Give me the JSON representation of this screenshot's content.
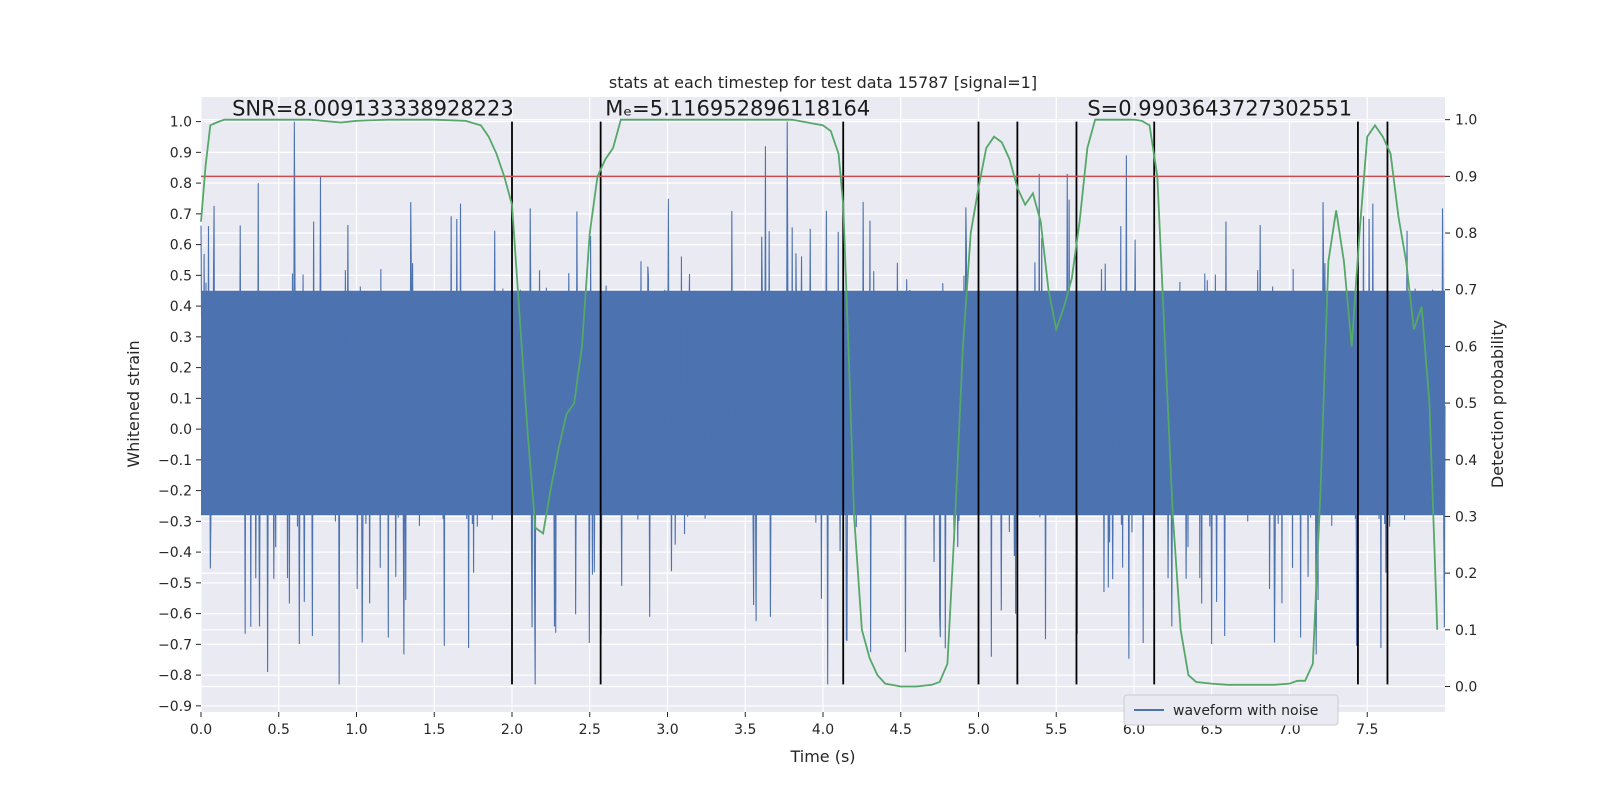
{
  "chart_data": {
    "type": "line",
    "title": "stats at each timestep for test data 15787 [signal=1]",
    "xlabel": "Time (s)",
    "ylabel": "Whitened strain",
    "ylabel_right": "Detection probability",
    "xlim": [
      0.0,
      8.0
    ],
    "ylim": [
      -0.92,
      1.08
    ],
    "ylim_right": [
      -0.045,
      1.04
    ],
    "x_ticks": [
      0.0,
      0.5,
      1.0,
      1.5,
      2.0,
      2.5,
      3.0,
      3.5,
      4.0,
      4.5,
      5.0,
      5.5,
      6.0,
      6.5,
      7.0,
      7.5
    ],
    "x_tick_labels": [
      "0.0",
      "0.5",
      "1.0",
      "1.5",
      "2.0",
      "2.5",
      "3.0",
      "3.5",
      "4.0",
      "4.5",
      "5.0",
      "5.5",
      "6.0",
      "6.5",
      "7.0",
      "7.5"
    ],
    "y_ticks": [
      1.0,
      0.9,
      0.8,
      0.7,
      0.6,
      0.5,
      0.4,
      0.3,
      0.2,
      0.1,
      0.0,
      -0.1,
      -0.2,
      -0.3,
      -0.4,
      -0.5,
      -0.6,
      -0.7,
      -0.8,
      -0.9
    ],
    "y_tick_labels": [
      "1.0",
      "0.9",
      "0.8",
      "0.7",
      "0.6",
      "0.5",
      "0.4",
      "0.3",
      "0.2",
      "0.1",
      "0.0",
      "−0.1",
      "−0.2",
      "−0.3",
      "−0.4",
      "−0.5",
      "−0.6",
      "−0.7",
      "−0.8",
      "−0.9"
    ],
    "y_right_ticks": [
      1.0,
      0.9,
      0.8,
      0.7,
      0.6,
      0.5,
      0.4,
      0.3,
      0.2,
      0.1,
      0.0
    ],
    "y_right_tick_labels": [
      "1.0",
      "0.9",
      "0.8",
      "0.7",
      "0.6",
      "0.5",
      "0.4",
      "0.3",
      "0.2",
      "0.1",
      "0.0"
    ],
    "grid": true,
    "legend": {
      "location": "lower right",
      "entries": [
        "waveform with noise"
      ]
    },
    "annotations": [
      {
        "text": "SNR=8.009133338928223",
        "x": 0.2,
        "y": 1.02
      },
      {
        "text": "Mₑ=5.116952896118164",
        "x": 2.6,
        "y": 1.02
      },
      {
        "text": "S=0.9903643727302551",
        "x": 5.7,
        "y": 1.02
      }
    ],
    "threshold_line": {
      "axis": "right",
      "y": 0.9,
      "color": "#c44e52"
    },
    "vertical_lines": [
      {
        "x": 2.0,
        "ymin": -0.83,
        "ymax": 1.0
      },
      {
        "x": 2.57,
        "ymin": -0.83,
        "ymax": 1.0
      },
      {
        "x": 4.13,
        "ymin": -0.83,
        "ymax": 1.0
      },
      {
        "x": 5.0,
        "ymin": -0.83,
        "ymax": 1.0
      },
      {
        "x": 5.25,
        "ymin": -0.83,
        "ymax": 1.0
      },
      {
        "x": 5.63,
        "ymin": -0.83,
        "ymax": 1.0
      },
      {
        "x": 6.13,
        "ymin": -0.83,
        "ymax": 1.0
      },
      {
        "x": 7.44,
        "ymin": -0.83,
        "ymax": 1.0
      },
      {
        "x": 7.63,
        "ymin": -0.83,
        "ymax": 1.0
      }
    ],
    "series": [
      {
        "name": "waveform with noise",
        "axis": "left",
        "color": "#4c72b0",
        "style": "dense noisy strain trace over the full time range",
        "sample_count": 2000,
        "core_band": [
          -0.28,
          0.45
        ],
        "peaks": [
          {
            "x": 0.6,
            "y": 1.0
          },
          {
            "x": 0.77,
            "y": 0.82
          },
          {
            "x": 0.37,
            "y": 0.8
          },
          {
            "x": 3.63,
            "y": 0.92
          },
          {
            "x": 3.77,
            "y": 1.0
          },
          {
            "x": 5.39,
            "y": 0.83
          },
          {
            "x": 5.57,
            "y": 0.83
          },
          {
            "x": 5.95,
            "y": 0.89
          },
          {
            "x": 0.89,
            "y": -0.83
          },
          {
            "x": 2.15,
            "y": -0.83
          },
          {
            "x": 4.03,
            "y": -0.83
          },
          {
            "x": 0.43,
            "y": -0.79
          }
        ]
      },
      {
        "name": "",
        "axis": "right",
        "color": "#55a868",
        "x": [
          0.0,
          0.03,
          0.06,
          0.1,
          0.15,
          0.2,
          0.3,
          0.5,
          0.7,
          0.9,
          1.0,
          1.2,
          1.5,
          1.7,
          1.8,
          1.85,
          1.9,
          1.95,
          2.0,
          2.05,
          2.1,
          2.15,
          2.2,
          2.25,
          2.3,
          2.35,
          2.4,
          2.45,
          2.5,
          2.55,
          2.6,
          2.65,
          2.7,
          2.75,
          2.8,
          3.0,
          3.3,
          3.6,
          3.8,
          3.9,
          4.0,
          4.05,
          4.1,
          4.13,
          4.17,
          4.2,
          4.25,
          4.3,
          4.35,
          4.4,
          4.5,
          4.6,
          4.7,
          4.75,
          4.8,
          4.85,
          4.9,
          4.95,
          5.0,
          5.05,
          5.1,
          5.15,
          5.2,
          5.25,
          5.3,
          5.35,
          5.4,
          5.45,
          5.5,
          5.55,
          5.6,
          5.65,
          5.7,
          5.75,
          5.8,
          5.9,
          6.0,
          6.05,
          6.1,
          6.15,
          6.2,
          6.25,
          6.3,
          6.35,
          6.4,
          6.5,
          6.6,
          6.7,
          6.8,
          6.9,
          7.0,
          7.05,
          7.1,
          7.15,
          7.2,
          7.25,
          7.3,
          7.35,
          7.4,
          7.45,
          7.5,
          7.55,
          7.6,
          7.65,
          7.7,
          7.75,
          7.8,
          7.85,
          7.9,
          7.95
        ],
        "y": [
          0.82,
          0.92,
          0.99,
          0.995,
          1.0,
          1.0,
          1.0,
          1.0,
          1.0,
          0.995,
          0.998,
          1.0,
          1.0,
          0.998,
          0.99,
          0.97,
          0.94,
          0.9,
          0.85,
          0.65,
          0.45,
          0.28,
          0.27,
          0.35,
          0.42,
          0.48,
          0.5,
          0.6,
          0.8,
          0.9,
          0.93,
          0.95,
          1.0,
          1.0,
          1.0,
          1.0,
          1.0,
          1.0,
          1.0,
          0.995,
          0.99,
          0.98,
          0.94,
          0.85,
          0.55,
          0.3,
          0.1,
          0.05,
          0.02,
          0.005,
          0.0,
          0.0,
          0.003,
          0.008,
          0.04,
          0.3,
          0.6,
          0.8,
          0.88,
          0.95,
          0.97,
          0.96,
          0.93,
          0.88,
          0.85,
          0.87,
          0.82,
          0.7,
          0.63,
          0.67,
          0.72,
          0.82,
          0.95,
          1.0,
          1.0,
          1.0,
          1.0,
          0.998,
          0.99,
          0.9,
          0.6,
          0.3,
          0.1,
          0.02,
          0.008,
          0.005,
          0.003,
          0.003,
          0.003,
          0.003,
          0.005,
          0.01,
          0.01,
          0.04,
          0.35,
          0.75,
          0.84,
          0.75,
          0.6,
          0.8,
          0.97,
          0.99,
          0.97,
          0.94,
          0.83,
          0.75,
          0.63,
          0.67,
          0.5,
          0.1
        ]
      }
    ]
  }
}
